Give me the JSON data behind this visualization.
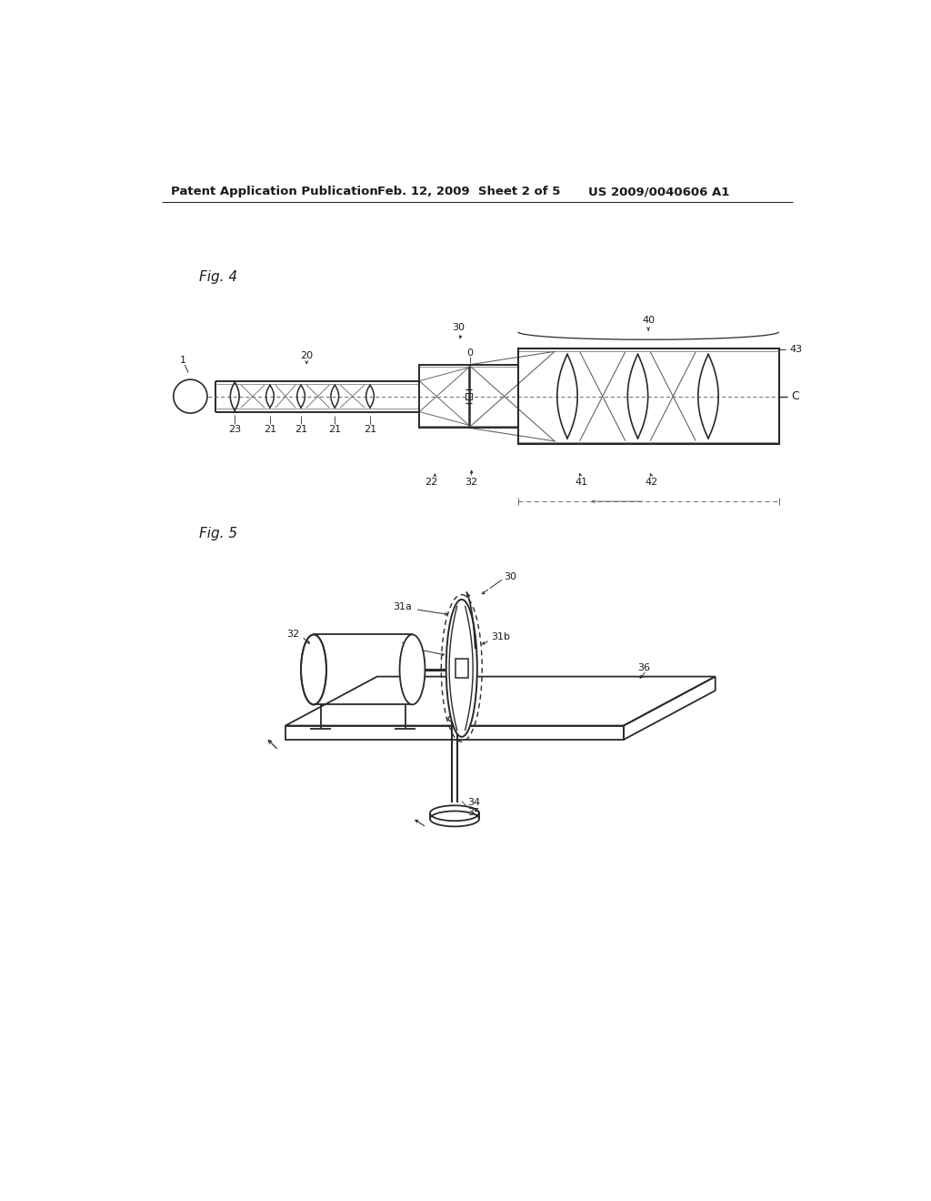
{
  "bg_color": "#ffffff",
  "header_left": "Patent Application Publication",
  "header_mid": "Feb. 12, 2009  Sheet 2 of 5",
  "header_right": "US 2009/0040606 A1",
  "fig4_label": "Fig. 4",
  "fig5_label": "Fig. 5",
  "lc": "#2a2a2a",
  "lc_light": "#666666",
  "tc": "#1a1a1a"
}
